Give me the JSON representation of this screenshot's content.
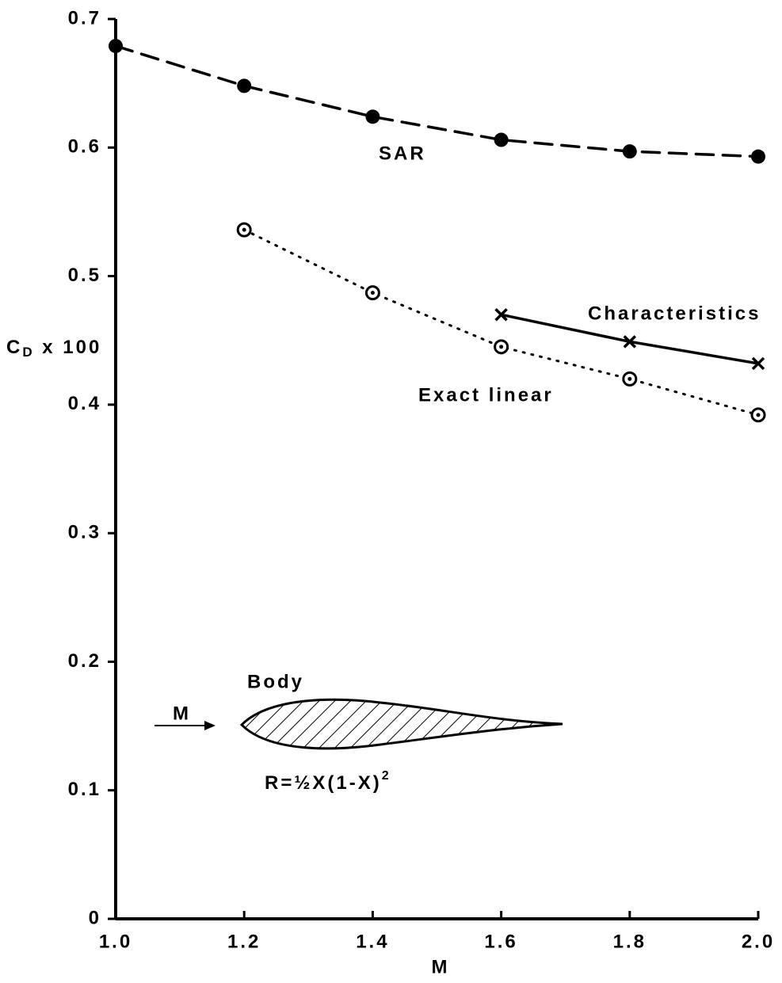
{
  "chart_data": {
    "type": "line",
    "xlabel": "M",
    "ylabel": {
      "main": "C",
      "sub": "D",
      "rest": " x 100"
    },
    "xlim": [
      1.0,
      2.0
    ],
    "ylim": [
      0,
      0.7
    ],
    "xticks": [
      {
        "value": 1.0,
        "label": "1.0"
      },
      1.2,
      1.4,
      1.6,
      1.8,
      {
        "value": 2.0,
        "label": "2.0"
      }
    ],
    "yticks": [
      0,
      0.1,
      0.2,
      0.3,
      0.4,
      0.5,
      0.6,
      0.7
    ],
    "series": [
      {
        "name": "SAR",
        "color": "#000000",
        "dash": "dashed",
        "marker": "filled-circle",
        "x": [
          1.0,
          1.2,
          1.4,
          1.6,
          1.8,
          2.0
        ],
        "values": [
          0.679,
          0.648,
          0.624,
          0.606,
          0.597,
          0.593
        ]
      },
      {
        "name": "Characteristics",
        "color": "#000000",
        "dash": "solid",
        "marker": "cross",
        "x": [
          1.6,
          1.8,
          2.0
        ],
        "values": [
          0.47,
          0.449,
          0.432
        ]
      },
      {
        "name": "Exact linear",
        "color": "#000000",
        "dash": "dotted",
        "marker": "dot-circle",
        "x": [
          1.2,
          1.4,
          1.6,
          1.8,
          2.0
        ],
        "values": [
          0.536,
          0.487,
          0.445,
          0.42,
          0.392
        ]
      }
    ],
    "inset": {
      "title": "Body",
      "flow_label": "M",
      "formula": "R=½X(1-X)",
      "formula_sup": "2"
    }
  }
}
